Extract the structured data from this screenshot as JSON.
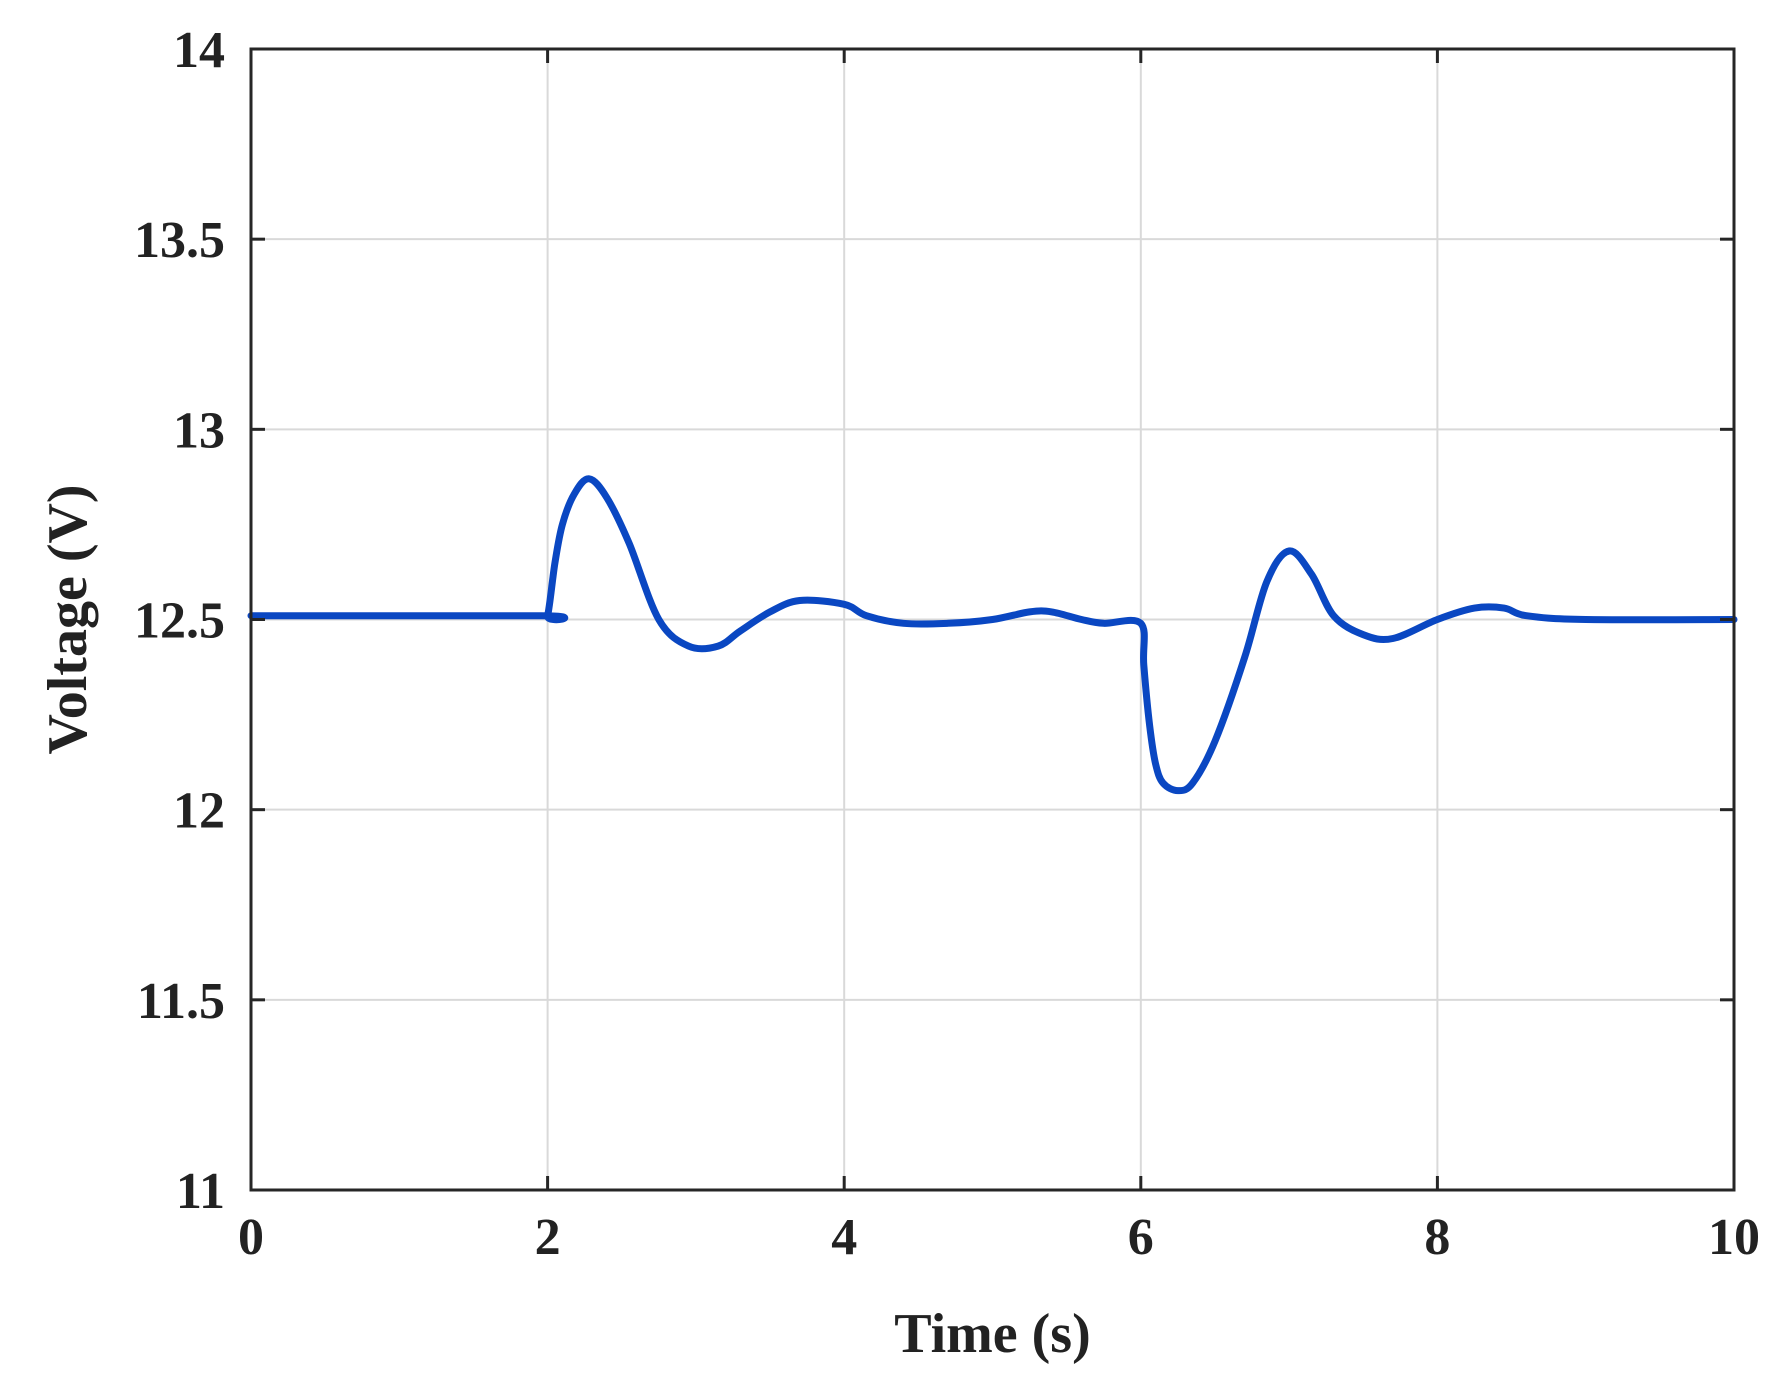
{
  "chart_data": {
    "type": "line",
    "title": "",
    "xlabel": "Time (s)",
    "ylabel": "Voltage (V)",
    "xlim": [
      0,
      10
    ],
    "ylim": [
      11,
      14
    ],
    "xticks": [
      0,
      2,
      4,
      6,
      8,
      10
    ],
    "yticks": [
      11,
      11.5,
      12,
      12.5,
      13,
      13.5,
      14
    ],
    "xtick_labels": [
      "0",
      "2",
      "4",
      "6",
      "8",
      "10"
    ],
    "ytick_labels": [
      "11",
      "11.5",
      "12",
      "12.5",
      "13",
      "13.5",
      "14"
    ],
    "grid": true,
    "legend": "none",
    "series": [
      {
        "color": "#0a47c2",
        "x": [
          0,
          1.96,
          2.0,
          2.05,
          2.1,
          2.18,
          2.28,
          2.4,
          2.55,
          2.75,
          2.95,
          3.15,
          3.3,
          3.5,
          3.7,
          4.0,
          4.15,
          4.4,
          4.7,
          5.0,
          5.25,
          5.4,
          5.6,
          5.75,
          6.0,
          6.02,
          6.06,
          6.1,
          6.15,
          6.25,
          6.35,
          6.5,
          6.7,
          6.85,
          7.0,
          7.15,
          7.3,
          7.5,
          7.7,
          8.0,
          8.25,
          8.45,
          8.6,
          9.0,
          10.0
        ],
        "y": [
          12.51,
          12.51,
          12.51,
          12.65,
          12.75,
          12.83,
          12.87,
          12.82,
          12.7,
          12.5,
          12.43,
          12.43,
          12.47,
          12.52,
          12.55,
          12.54,
          12.51,
          12.49,
          12.49,
          12.5,
          12.52,
          12.52,
          12.5,
          12.49,
          12.49,
          12.38,
          12.22,
          12.12,
          12.07,
          12.05,
          12.07,
          12.18,
          12.4,
          12.6,
          12.68,
          12.62,
          12.51,
          12.46,
          12.45,
          12.5,
          12.53,
          12.53,
          12.51,
          12.5,
          12.5
        ]
      }
    ]
  }
}
